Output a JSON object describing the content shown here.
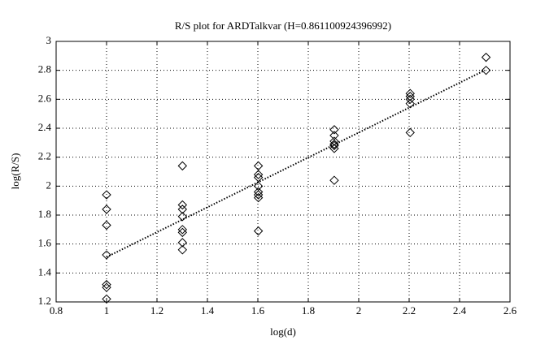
{
  "chart_data": {
    "type": "scatter",
    "title": "R/S plot for ARDTalkvar (H=0.861100924396992)",
    "xlabel": "log(d)",
    "ylabel": "log(R/S)",
    "x": [
      1,
      1,
      1,
      1,
      1,
      1,
      1,
      1.301,
      1.301,
      1.301,
      1.301,
      1.301,
      1.301,
      1.301,
      1.301,
      1.602,
      1.602,
      1.602,
      1.602,
      1.602,
      1.602,
      1.602,
      1.602,
      1.903,
      1.903,
      1.903,
      1.903,
      1.903,
      1.903,
      1.903,
      2.204,
      2.204,
      2.204,
      2.204,
      2.204,
      2.505,
      2.505
    ],
    "y": [
      1.94,
      1.84,
      1.73,
      1.525,
      1.32,
      1.3,
      1.22,
      2.14,
      1.87,
      1.84,
      1.79,
      1.7,
      1.68,
      1.61,
      1.56,
      2.14,
      2.08,
      2.06,
      2.0,
      1.96,
      1.94,
      1.92,
      1.69,
      2.39,
      2.35,
      2.31,
      2.29,
      2.28,
      2.26,
      2.04,
      2.64,
      2.62,
      2.6,
      2.57,
      2.37,
      2.89,
      2.8
    ],
    "fit": {
      "x": [
        1,
        2.5
      ],
      "y": [
        1.51,
        2.8
      ]
    },
    "color": "#000000",
    "xlim": [
      0.8,
      2.6
    ],
    "xticks": [
      0.8,
      1,
      1.2,
      1.4,
      1.6,
      1.8,
      2,
      2.2,
      2.4,
      2.6
    ],
    "ylim": [
      1.2,
      3
    ],
    "yticks": [
      1.2,
      1.4,
      1.6,
      1.8,
      2,
      2.2,
      2.4,
      2.6,
      2.8,
      3
    ],
    "grid": true
  }
}
